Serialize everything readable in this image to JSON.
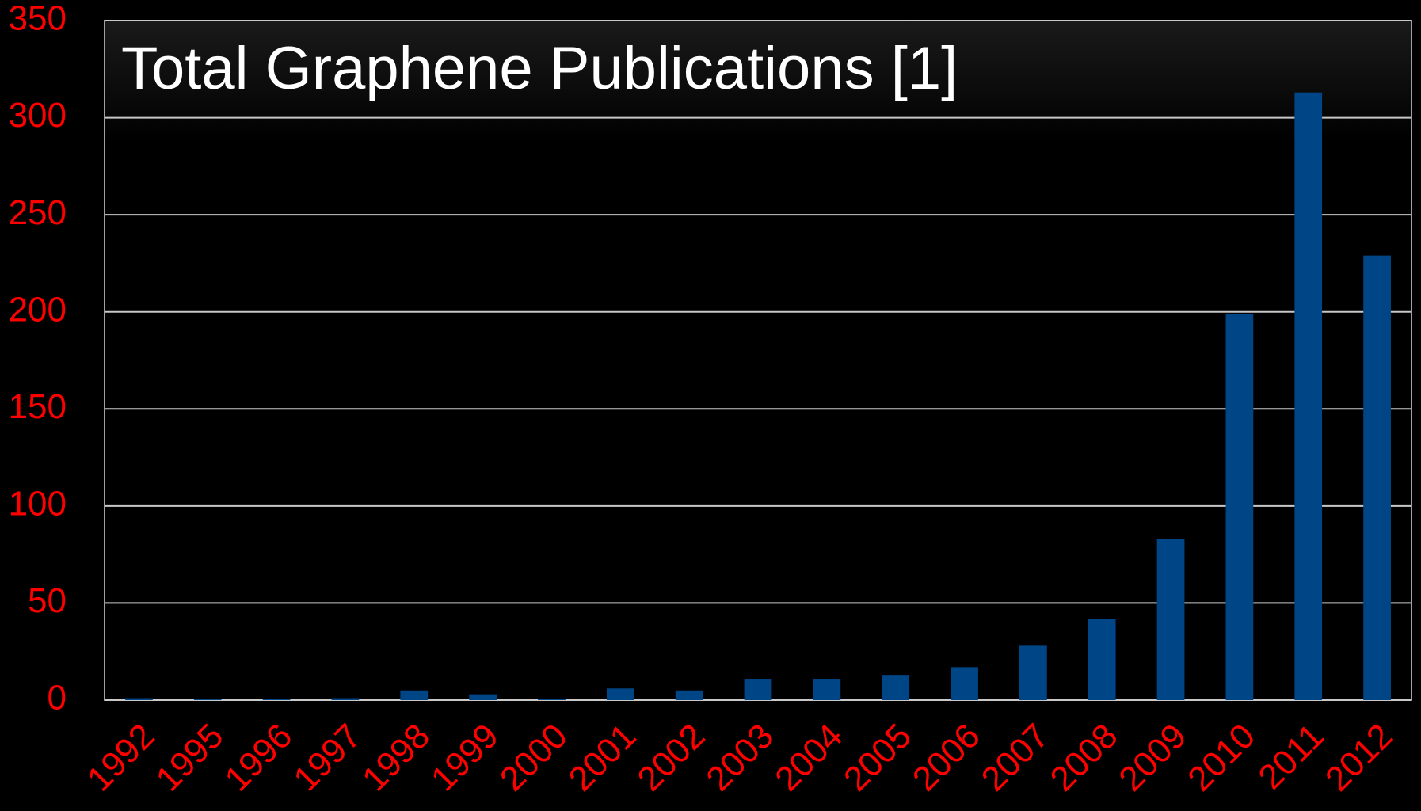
{
  "chart_data": {
    "type": "bar",
    "title": "Total Graphene Publications [1]",
    "categories": [
      "1992",
      "1995",
      "1996",
      "1997",
      "1998",
      "1999",
      "2000",
      "2001",
      "2002",
      "2003",
      "2004",
      "2005",
      "2006",
      "2007",
      "2008",
      "2009",
      "2010",
      "2011",
      "2012"
    ],
    "values": [
      1,
      0.5,
      0.5,
      1,
      5,
      3,
      0.5,
      6,
      5,
      11,
      11,
      13,
      17,
      28,
      42,
      83,
      199,
      313,
      229
    ],
    "color": "#004586",
    "ylim": [
      0,
      350
    ],
    "yticks": [
      0,
      50,
      100,
      150,
      200,
      250,
      300,
      350
    ],
    "grid": true
  }
}
